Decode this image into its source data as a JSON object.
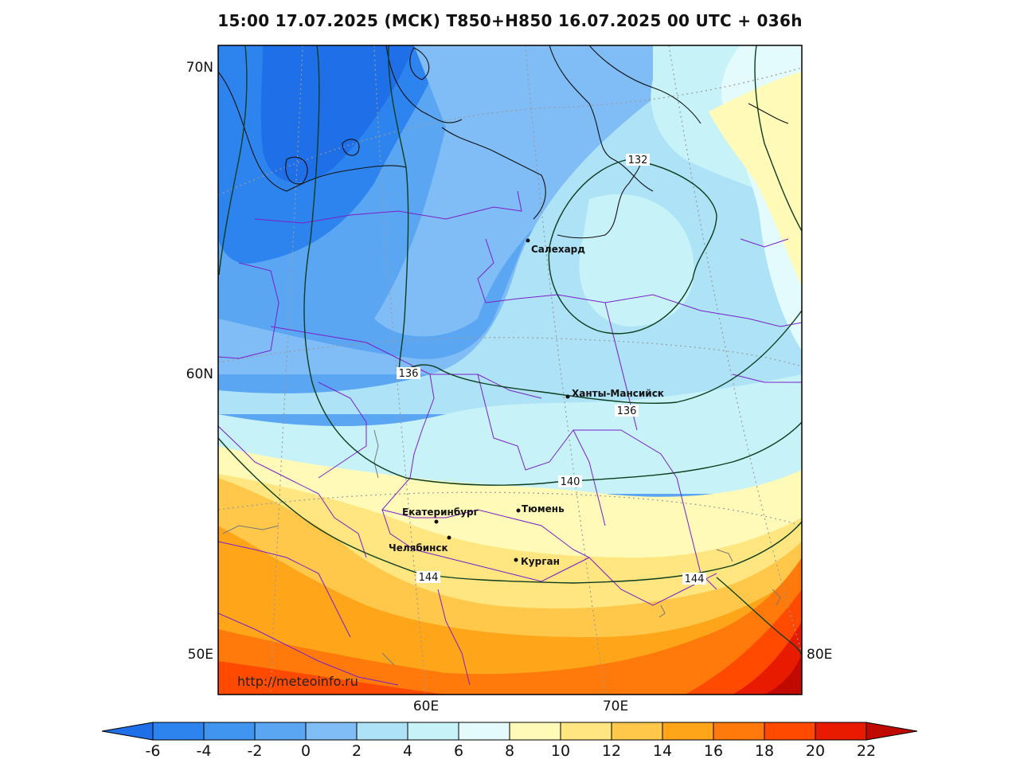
{
  "title": "15:00 17.07.2025 (МСК) T850+H850 16.07.2025 00 UTC + 036h",
  "axes": {
    "lat_labels": [
      "70N",
      "60N",
      "50E"
    ],
    "lon_labels": [
      "60E",
      "70E",
      "80E"
    ]
  },
  "cities": [
    {
      "name": "Салехард"
    },
    {
      "name": "Ханты-Мансийск"
    },
    {
      "name": "Екатеринбург"
    },
    {
      "name": "Тюмень"
    },
    {
      "name": "Челябинск"
    },
    {
      "name": "Курган"
    }
  ],
  "isohypses": [
    "132",
    "136",
    "136",
    "140",
    "144",
    "144"
  ],
  "credit": "http://meteoinfo.ru",
  "colorbar": {
    "ticks": [
      "-6",
      "-4",
      "-2",
      "0",
      "2",
      "4",
      "6",
      "8",
      "10",
      "12",
      "14",
      "16",
      "18",
      "20",
      "22"
    ],
    "colors": [
      "#1f6fe8",
      "#2e84ee",
      "#3f95f0",
      "#5aa6f3",
      "#80bcf6",
      "#aee3f7",
      "#c7f3f8",
      "#e3fbfd",
      "#fffab8",
      "#ffe680",
      "#ffc84a",
      "#ffa51a",
      "#ff7a0a",
      "#ff4a00",
      "#e81a00",
      "#c00a00"
    ]
  }
}
